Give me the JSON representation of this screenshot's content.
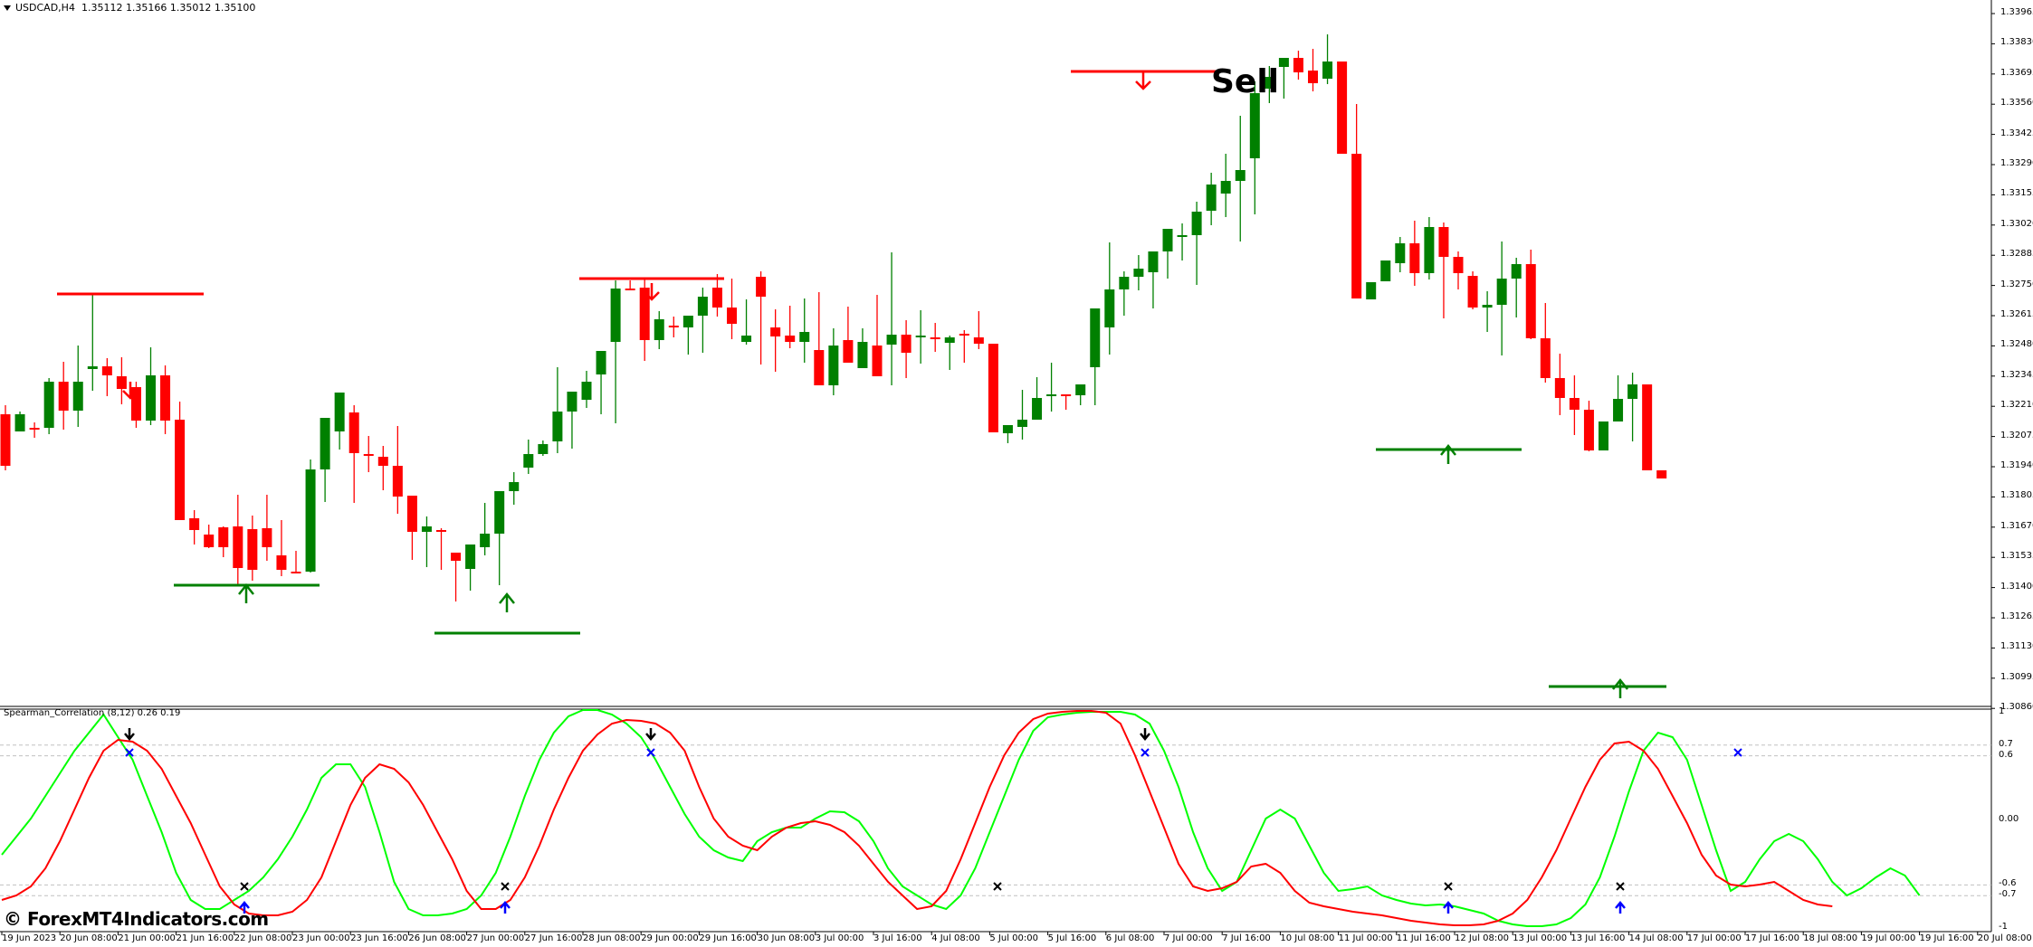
{
  "window": {
    "symbol": "USDCAD,H4",
    "ohlc": "1.35112 1.35166 1.35012 1.35100"
  },
  "colors": {
    "bull": "#008000",
    "bear": "#ff0000",
    "fast_line": "#00ff00",
    "slow_line": "#ff0000",
    "signal_marker": "#0000ff",
    "grid_dash": "#c0c0c0"
  },
  "annotations": {
    "sell_label": "Sell",
    "watermark": "© ForexMT4Indicators.com"
  },
  "indicator": {
    "label": "Spearman_Correlation (8,12) 0.26 0.19",
    "levels": [
      "1",
      "0.7",
      "0.6",
      "0.00",
      "-0.6",
      "-0.7",
      "-1"
    ]
  },
  "price_axis": {
    "labels": [
      "1.33965",
      "1.33830",
      "1.33695",
      "1.33560",
      "1.33425",
      "1.33290",
      "1.33155",
      "1.33020",
      "1.32885",
      "1.32750",
      "1.32615",
      "1.32480",
      "1.32345",
      "1.32210",
      "1.32075",
      "1.31940",
      "1.31805",
      "1.31670",
      "1.31535",
      "1.31400",
      "1.31265",
      "1.31130",
      "1.30995",
      "1.30860"
    ]
  },
  "time_axis": {
    "labels": [
      "19 Jun 2023",
      "20 Jun 08:00",
      "21 Jun 00:00",
      "21 Jun 16:00",
      "22 Jun 08:00",
      "23 Jun 00:00",
      "23 Jun 16:00",
      "26 Jun 08:00",
      "27 Jun 00:00",
      "27 Jun 16:00",
      "28 Jun 08:00",
      "29 Jun 00:00",
      "29 Jun 16:00",
      "30 Jun 08:00",
      "3 Jul 00:00",
      "3 Jul 16:00",
      "4 Jul 08:00",
      "5 Jul 00:00",
      "5 Jul 16:00",
      "6 Jul 08:00",
      "7 Jul 00:00",
      "7 Jul 16:00",
      "10 Jul 08:00",
      "11 Jul 00:00",
      "11 Jul 16:00",
      "12 Jul 08:00",
      "13 Jul 00:00",
      "13 Jul 16:00",
      "14 Jul 08:00",
      "17 Jul 00:00",
      "17 Jul 16:00",
      "18 Jul 08:00",
      "19 Jul 00:00",
      "19 Jul 16:00",
      "20 Jul 08:00"
    ]
  },
  "chart_data": {
    "type": "candlestick",
    "title": "USDCAD,H4",
    "ylim": [
      1.3086,
      1.33965
    ],
    "candle_pixel_ohlc_note": "o,h,l,c as y-pixels in screenshot",
    "candles": [
      [
        458,
        448,
        520,
        515
      ],
      [
        477,
        455,
        477,
        458
      ],
      [
        473,
        467,
        484,
        475
      ],
      [
        473,
        418,
        480,
        422
      ],
      [
        422,
        400,
        475,
        454
      ],
      [
        454,
        382,
        472,
        422
      ],
      [
        408,
        325,
        432,
        405
      ],
      [
        405,
        396,
        438,
        415
      ],
      [
        416,
        395,
        447,
        430
      ],
      [
        428,
        422,
        473,
        465
      ],
      [
        465,
        384,
        470,
        415
      ],
      [
        415,
        404,
        480,
        465
      ],
      [
        464,
        444,
        479,
        575
      ],
      [
        573,
        564,
        602,
        586
      ],
      [
        591,
        580,
        606,
        605
      ],
      [
        583,
        582,
        616,
        605
      ],
      [
        582,
        547,
        647,
        628
      ],
      [
        585,
        570,
        642,
        630
      ],
      [
        584,
        547,
        620,
        605
      ],
      [
        614,
        575,
        637,
        630
      ],
      [
        632,
        609,
        633,
        632
      ],
      [
        632,
        508,
        633,
        519
      ],
      [
        519,
        490,
        555,
        462
      ],
      [
        477,
        457,
        497,
        434
      ],
      [
        456,
        448,
        556,
        501
      ],
      [
        502,
        482,
        522,
        504
      ],
      [
        505,
        493,
        542,
        515
      ],
      [
        515,
        471,
        568,
        549
      ],
      [
        548,
        575,
        619,
        588
      ],
      [
        588,
        571,
        627,
        582
      ],
      [
        586,
        584,
        630,
        587
      ],
      [
        611,
        611,
        665,
        620
      ],
      [
        629,
        646,
        653,
        602
      ],
      [
        605,
        556,
        614,
        590
      ],
      [
        590,
        555,
        647,
        543
      ],
      [
        543,
        522,
        558,
        533
      ],
      [
        517,
        486,
        524,
        502
      ],
      [
        502,
        487,
        504,
        491
      ],
      [
        488,
        406,
        501,
        455
      ],
      [
        455,
        459,
        496,
        433
      ],
      [
        442,
        410,
        451,
        422
      ],
      [
        414,
        395,
        458,
        388
      ],
      [
        378,
        310,
        468,
        319
      ],
      [
        319,
        310,
        319,
        319
      ],
      [
        318,
        308,
        399,
        376
      ],
      [
        376,
        344,
        386,
        353
      ],
      [
        360,
        350,
        373,
        362
      ],
      [
        362,
        351,
        392,
        349
      ],
      [
        349,
        318,
        390,
        328
      ],
      [
        318,
        303,
        350,
        340
      ],
      [
        340,
        308,
        375,
        358
      ],
      [
        378,
        331,
        381,
        371
      ],
      [
        306,
        300,
        403,
        328
      ],
      [
        362,
        342,
        411,
        372
      ],
      [
        371,
        338,
        385,
        378
      ],
      [
        378,
        330,
        401,
        367
      ],
      [
        387,
        323,
        422,
        426
      ],
      [
        426,
        363,
        437,
        382
      ],
      [
        376,
        339,
        399,
        401
      ],
      [
        407,
        363,
        388,
        378
      ],
      [
        382,
        326,
        404,
        416
      ],
      [
        381,
        279,
        426,
        370
      ],
      [
        370,
        354,
        418,
        390
      ],
      [
        372,
        343,
        402,
        371
      ],
      [
        373,
        357,
        389,
        375
      ],
      [
        379,
        371,
        409,
        373
      ],
      [
        369,
        365,
        401,
        371
      ],
      [
        373,
        344,
        386,
        380
      ],
      [
        380,
        383,
        422,
        478
      ],
      [
        479,
        475,
        490,
        470
      ],
      [
        472,
        431,
        486,
        464
      ],
      [
        464,
        417,
        446,
        440
      ],
      [
        438,
        401,
        455,
        436
      ],
      [
        436,
        441,
        453,
        436
      ],
      [
        437,
        428,
        448,
        425
      ],
      [
        406,
        400,
        448,
        341
      ],
      [
        362,
        268,
        392,
        320
      ],
      [
        320,
        300,
        349,
        306
      ],
      [
        306,
        282,
        321,
        297
      ],
      [
        301,
        278,
        341,
        278
      ],
      [
        278,
        255,
        308,
        253
      ],
      [
        262,
        247,
        288,
        260
      ],
      [
        260,
        223,
        315,
        234
      ],
      [
        233,
        191,
        249,
        204
      ],
      [
        214,
        170,
        240,
        200
      ],
      [
        200,
        128,
        267,
        188
      ],
      [
        175,
        90,
        237,
        103
      ],
      [
        98,
        73,
        114,
        85
      ],
      [
        74,
        64,
        109,
        64
      ],
      [
        64,
        56,
        88,
        80
      ],
      [
        78,
        54,
        101,
        92
      ],
      [
        87,
        38,
        93,
        68
      ],
      [
        68,
        68,
        68,
        170
      ],
      [
        170,
        115,
        328,
        330
      ],
      [
        331,
        327,
        316,
        312
      ],
      [
        311,
        307,
        274,
        288
      ],
      [
        291,
        262,
        301,
        269
      ],
      [
        269,
        244,
        316,
        302
      ],
      [
        302,
        240,
        309,
        251
      ],
      [
        251,
        246,
        352,
        284
      ],
      [
        284,
        278,
        320,
        302
      ],
      [
        305,
        300,
        342,
        340
      ],
      [
        340,
        322,
        367,
        337
      ],
      [
        337,
        267,
        393,
        308
      ],
      [
        308,
        285,
        351,
        292
      ],
      [
        292,
        276,
        375,
        374
      ],
      [
        374,
        335,
        423,
        418
      ],
      [
        418,
        391,
        459,
        440
      ],
      [
        440,
        415,
        481,
        453
      ],
      [
        453,
        443,
        499,
        498
      ],
      [
        498,
        477,
        471,
        466
      ],
      [
        466,
        415,
        463,
        441
      ],
      [
        441,
        412,
        488,
        425
      ],
      [
        425,
        452,
        464,
        520
      ],
      [
        520,
        533,
        486,
        529
      ]
    ],
    "note": "candle data approximated from screenshot; oscillator lines are drawn from osc arrays"
  }
}
